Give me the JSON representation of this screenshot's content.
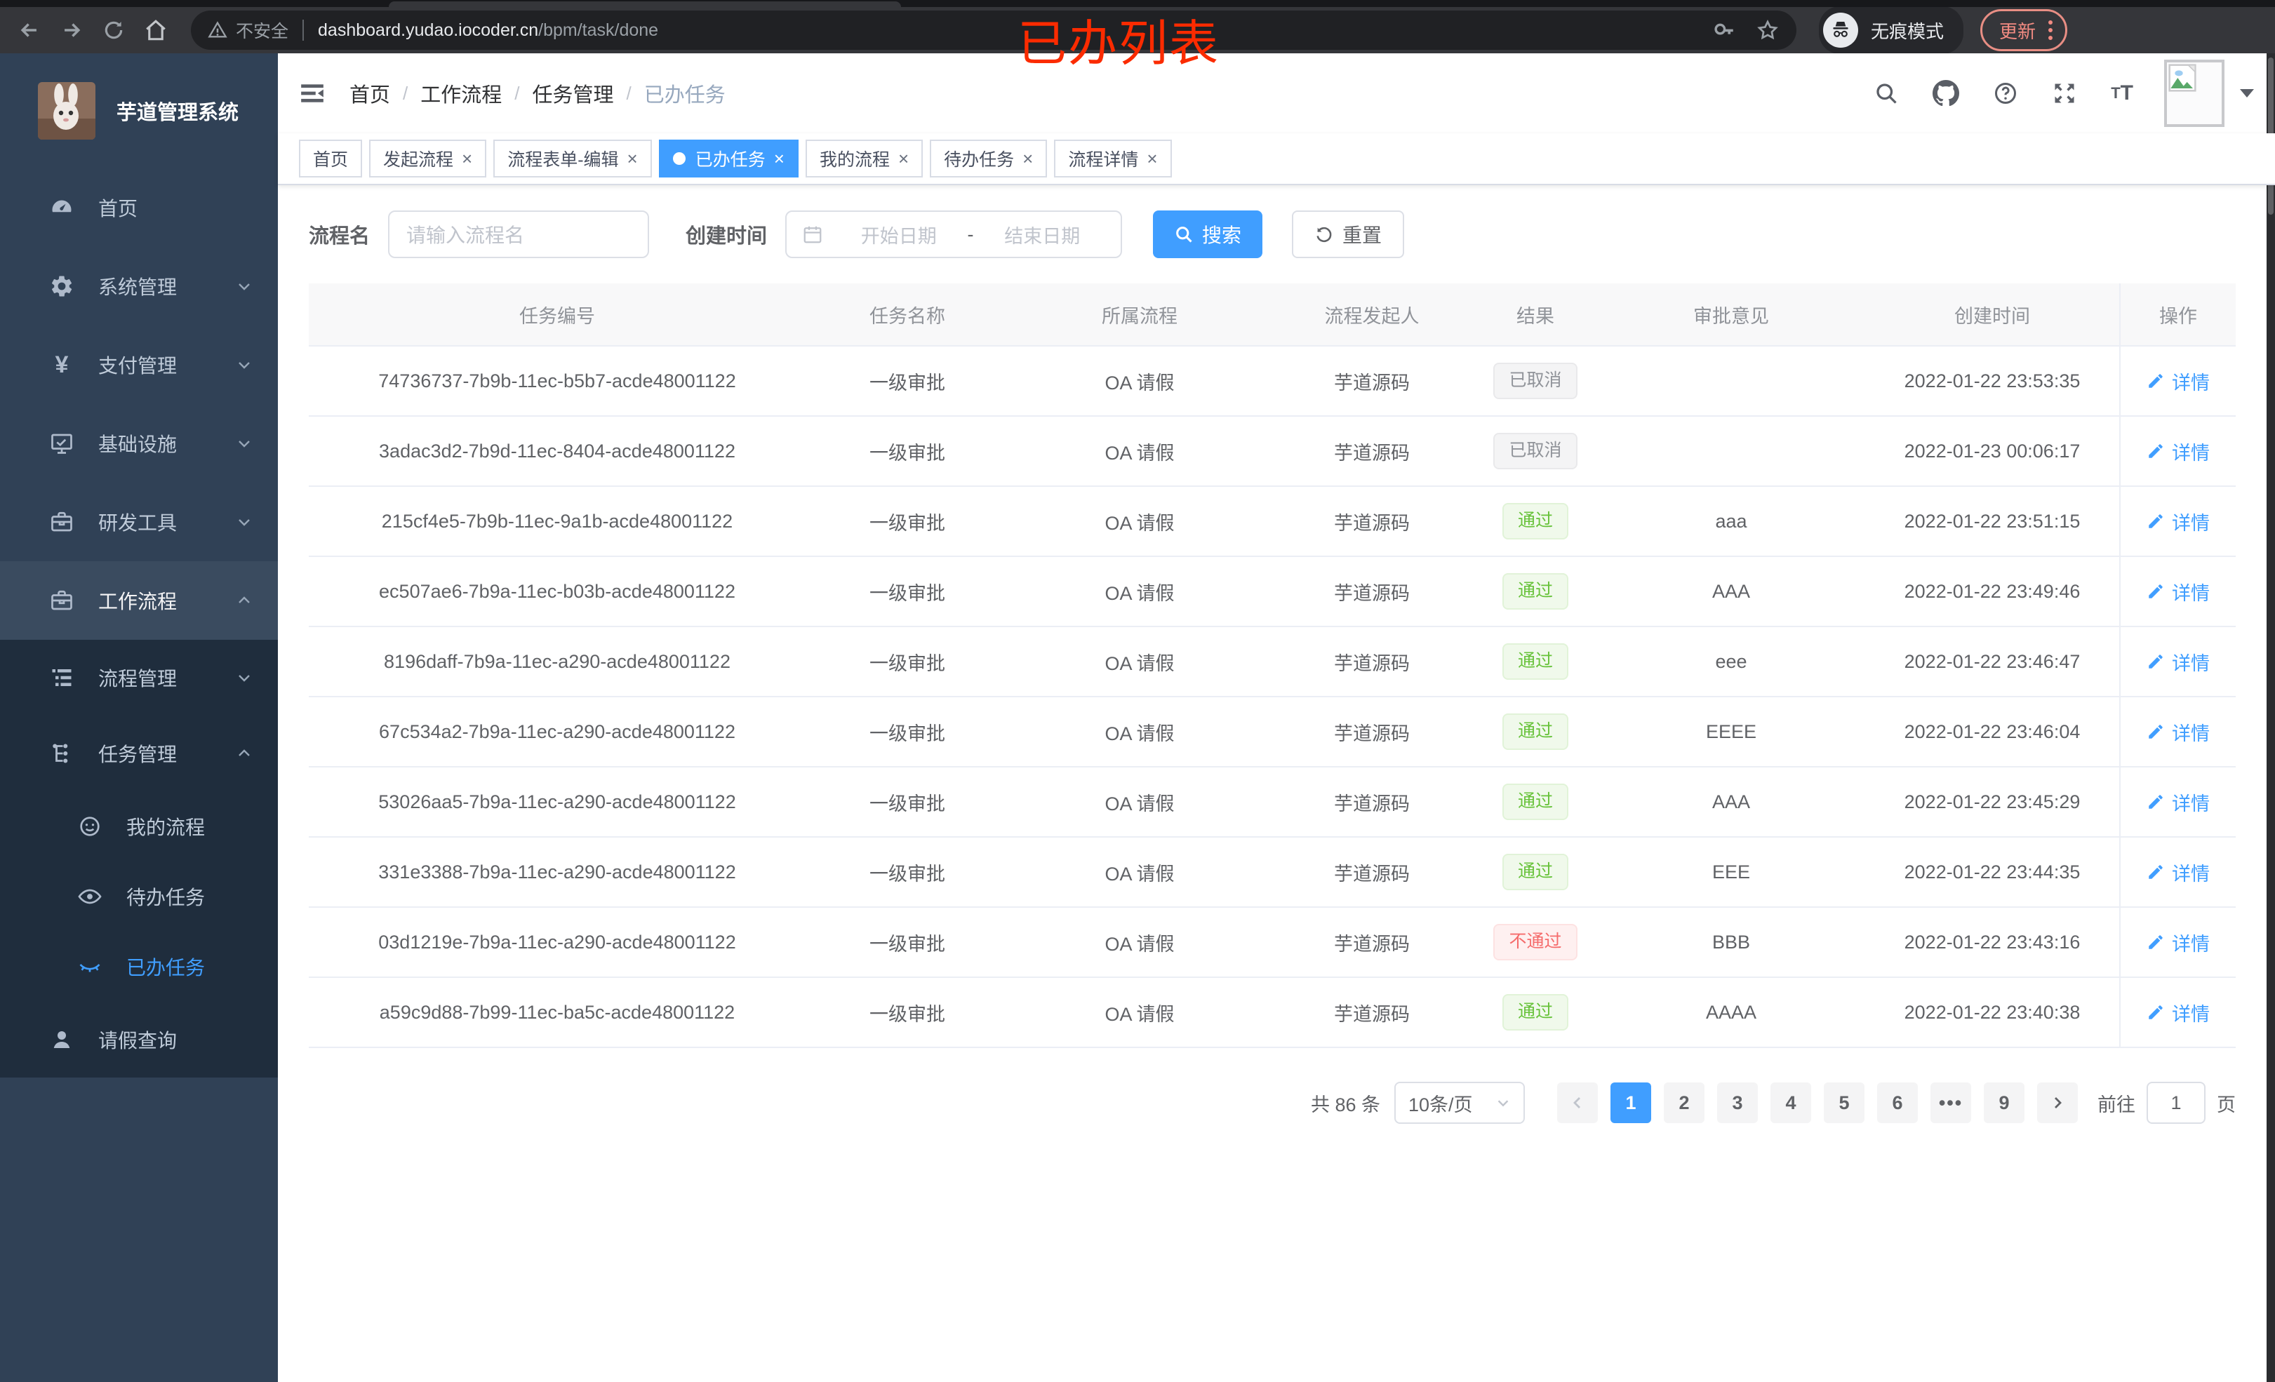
{
  "theme": {
    "accent": "#409EFF",
    "success": "#67C23A",
    "danger": "#F56C6C",
    "info_text": "#909399",
    "sidebar_bg": "#304156",
    "submenu_bg": "#1F2D3D",
    "annotation_color": "#FB2B00"
  },
  "browser": {
    "security_warning": "不安全",
    "url_host": "dashboard.yudao.iocoder.cn",
    "url_path": "/bpm/task/done",
    "incognito_label": "无痕模式",
    "update_label": "更新",
    "icons": [
      "back-icon",
      "forward-icon",
      "reload-icon",
      "home-icon",
      "warning-icon",
      "key-icon",
      "star-icon",
      "incognito-icon",
      "more-dots-icon"
    ]
  },
  "annotation": {
    "text": "已办列表"
  },
  "sidebar": {
    "app_title": "芋道管理系统",
    "home": "首页",
    "system": "系统管理",
    "payment": "支付管理",
    "infra": "基础设施",
    "devtools": "研发工具",
    "workflow": "工作流程",
    "process_mgmt": "流程管理",
    "task_mgmt": "任务管理",
    "my_process": "我的流程",
    "todo_tasks": "待办任务",
    "done_tasks": "已办任务",
    "leave_query": "请假查询"
  },
  "breadcrumb": {
    "items": [
      "首页",
      "工作流程",
      "任务管理",
      "已办任务"
    ],
    "separator": "/"
  },
  "header_icons": [
    "search-icon",
    "github-icon",
    "help-icon",
    "fullscreen-icon",
    "font-size-icon",
    "avatar",
    "caret-down-icon"
  ],
  "tabs": [
    {
      "label": "首页",
      "closable": false,
      "active": false
    },
    {
      "label": "发起流程",
      "closable": true,
      "active": false
    },
    {
      "label": "流程表单-编辑",
      "closable": true,
      "active": false
    },
    {
      "label": "已办任务",
      "closable": true,
      "active": true
    },
    {
      "label": "我的流程",
      "closable": true,
      "active": false
    },
    {
      "label": "待办任务",
      "closable": true,
      "active": false
    },
    {
      "label": "流程详情",
      "closable": true,
      "active": false
    }
  ],
  "filters": {
    "name_label": "流程名",
    "name_placeholder": "请输入流程名",
    "time_label": "创建时间",
    "start_placeholder": "开始日期",
    "range_separator": "-",
    "end_placeholder": "结束日期",
    "search_label": "搜索",
    "reset_label": "重置"
  },
  "table": {
    "columns": [
      "任务编号",
      "任务名称",
      "所属流程",
      "流程发起人",
      "结果",
      "审批意见",
      "创建时间",
      "操作"
    ],
    "action_label": "详情",
    "rows": [
      {
        "id": "74736737-7b9b-11ec-b5b7-acde48001122",
        "task_name": "一级审批",
        "process": "OA 请假",
        "starter": "芋道源码",
        "result": "已取消",
        "result_type": "info",
        "comment": "",
        "created_at": "2022-01-22 23:53:35"
      },
      {
        "id": "3adac3d2-7b9d-11ec-8404-acde48001122",
        "task_name": "一级审批",
        "process": "OA 请假",
        "starter": "芋道源码",
        "result": "已取消",
        "result_type": "info",
        "comment": "",
        "created_at": "2022-01-23 00:06:17"
      },
      {
        "id": "215cf4e5-7b9b-11ec-9a1b-acde48001122",
        "task_name": "一级审批",
        "process": "OA 请假",
        "starter": "芋道源码",
        "result": "通过",
        "result_type": "success",
        "comment": "aaa",
        "created_at": "2022-01-22 23:51:15"
      },
      {
        "id": "ec507ae6-7b9a-11ec-b03b-acde48001122",
        "task_name": "一级审批",
        "process": "OA 请假",
        "starter": "芋道源码",
        "result": "通过",
        "result_type": "success",
        "comment": "AAA",
        "created_at": "2022-01-22 23:49:46"
      },
      {
        "id": "8196daff-7b9a-11ec-a290-acde48001122",
        "task_name": "一级审批",
        "process": "OA 请假",
        "starter": "芋道源码",
        "result": "通过",
        "result_type": "success",
        "comment": "eee",
        "created_at": "2022-01-22 23:46:47"
      },
      {
        "id": "67c534a2-7b9a-11ec-a290-acde48001122",
        "task_name": "一级审批",
        "process": "OA 请假",
        "starter": "芋道源码",
        "result": "通过",
        "result_type": "success",
        "comment": "EEEE",
        "created_at": "2022-01-22 23:46:04"
      },
      {
        "id": "53026aa5-7b9a-11ec-a290-acde48001122",
        "task_name": "一级审批",
        "process": "OA 请假",
        "starter": "芋道源码",
        "result": "通过",
        "result_type": "success",
        "comment": "AAA",
        "created_at": "2022-01-22 23:45:29"
      },
      {
        "id": "331e3388-7b9a-11ec-a290-acde48001122",
        "task_name": "一级审批",
        "process": "OA 请假",
        "starter": "芋道源码",
        "result": "通过",
        "result_type": "success",
        "comment": "EEE",
        "created_at": "2022-01-22 23:44:35"
      },
      {
        "id": "03d1219e-7b9a-11ec-a290-acde48001122",
        "task_name": "一级审批",
        "process": "OA 请假",
        "starter": "芋道源码",
        "result": "不通过",
        "result_type": "danger",
        "comment": "BBB",
        "created_at": "2022-01-22 23:43:16"
      },
      {
        "id": "a59c9d88-7b99-11ec-ba5c-acde48001122",
        "task_name": "一级审批",
        "process": "OA 请假",
        "starter": "芋道源码",
        "result": "通过",
        "result_type": "success",
        "comment": "AAAA",
        "created_at": "2022-01-22 23:40:38"
      }
    ]
  },
  "pagination": {
    "total": "共 86 条",
    "page_size": "10条/页",
    "pages": [
      "1",
      "2",
      "3",
      "4",
      "5",
      "6",
      "more",
      "9"
    ],
    "active_page": "1",
    "goto_label": "前往",
    "goto_value": "1",
    "goto_suffix": "页"
  }
}
